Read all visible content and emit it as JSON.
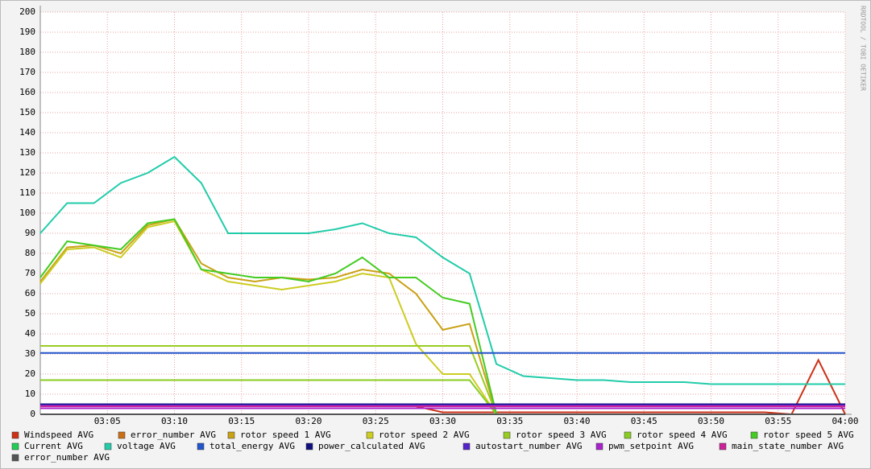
{
  "chart_data": {
    "type": "line",
    "side_text": "RRDTOOL / TOBI OETIKER",
    "x": [
      "03:00",
      "03:02",
      "03:04",
      "03:06",
      "03:08",
      "03:10",
      "03:12",
      "03:14",
      "03:16",
      "03:18",
      "03:20",
      "03:22",
      "03:24",
      "03:26",
      "03:28",
      "03:30",
      "03:32",
      "03:34",
      "03:36",
      "03:38",
      "03:40",
      "03:42",
      "03:44",
      "03:46",
      "03:48",
      "03:50",
      "03:52",
      "03:54",
      "03:56",
      "03:58",
      "04:00"
    ],
    "xlim": [
      "03:00",
      "04:00"
    ],
    "xticks": [
      "03:05",
      "03:10",
      "03:15",
      "03:20",
      "03:25",
      "03:30",
      "03:35",
      "03:40",
      "03:45",
      "03:50",
      "03:55",
      "04:00"
    ],
    "ylim": [
      0,
      200
    ],
    "yticks": [
      0,
      10,
      20,
      30,
      40,
      50,
      60,
      70,
      80,
      90,
      100,
      110,
      120,
      130,
      140,
      150,
      160,
      170,
      180,
      190,
      200
    ],
    "grid": true,
    "series": [
      {
        "name": "Windspeed AVG",
        "color": "#cc3118",
        "values": [
          4,
          4,
          4,
          4,
          4,
          4,
          4,
          4,
          4,
          4,
          4,
          4,
          4,
          4,
          4,
          1,
          1,
          1,
          1,
          1,
          1,
          1,
          1,
          1,
          1,
          1,
          1,
          1,
          0,
          27,
          0
        ]
      },
      {
        "name": "error_number AVG",
        "color": "#cc7016",
        "values": [
          0,
          0,
          0,
          0,
          0,
          0,
          0,
          0,
          0,
          0,
          0,
          0,
          0,
          0,
          0,
          0,
          0,
          0,
          0,
          0,
          0,
          0,
          0,
          0,
          0,
          0,
          0,
          0,
          0,
          0,
          0
        ]
      },
      {
        "name": "rotor speed 1 AVG",
        "color": "#c9a215",
        "values": [
          66,
          83,
          84,
          80,
          94,
          97,
          75,
          68,
          66,
          68,
          67,
          68,
          72,
          70,
          60,
          42,
          45,
          0,
          0,
          0,
          0,
          0,
          0,
          0,
          0,
          0,
          0,
          0,
          0,
          0,
          0
        ]
      },
      {
        "name": "rotor speed 2 AVG",
        "color": "#cccc22",
        "values": [
          65,
          82,
          83,
          78,
          93,
          96,
          72,
          66,
          64,
          62,
          64,
          66,
          70,
          68,
          35,
          20,
          20,
          0,
          0,
          0,
          0,
          0,
          0,
          0,
          0,
          0,
          0,
          0,
          0,
          0,
          0
        ]
      },
      {
        "name": "rotor speed 3 AVG",
        "color": "#99cc22",
        "values": [
          34,
          34,
          34,
          34,
          34,
          34,
          34,
          34,
          34,
          34,
          34,
          34,
          34,
          34,
          34,
          34,
          34,
          0,
          0,
          0,
          0,
          0,
          0,
          0,
          0,
          0,
          0,
          0,
          0,
          0,
          0
        ]
      },
      {
        "name": "rotor speed 4 AVG",
        "color": "#88cc22",
        "values": [
          17,
          17,
          17,
          17,
          17,
          17,
          17,
          17,
          17,
          17,
          17,
          17,
          17,
          17,
          17,
          17,
          17,
          0,
          0,
          0,
          0,
          0,
          0,
          0,
          0,
          0,
          0,
          0,
          0,
          0,
          0
        ]
      },
      {
        "name": "rotor speed 5 AVG",
        "color": "#44cc22",
        "values": [
          68,
          86,
          84,
          82,
          95,
          97,
          72,
          70,
          68,
          68,
          66,
          70,
          78,
          68,
          68,
          58,
          55,
          0,
          0,
          0,
          0,
          0,
          0,
          0,
          0,
          0,
          0,
          0,
          0,
          0,
          0
        ]
      },
      {
        "name": "Current AVG",
        "color": "#22cc55",
        "values": [
          0,
          0,
          0,
          0,
          0,
          0,
          0,
          0,
          0,
          0,
          0,
          0,
          0,
          0,
          0,
          0,
          0,
          0,
          0,
          0,
          0,
          0,
          0,
          0,
          0,
          0,
          0,
          0,
          0,
          0,
          0
        ]
      },
      {
        "name": "voltage AVG",
        "color": "#22ccaa",
        "values": [
          90,
          105,
          105,
          115,
          120,
          128,
          115,
          90,
          90,
          90,
          90,
          92,
          95,
          90,
          88,
          78,
          70,
          25,
          19,
          18,
          17,
          17,
          16,
          16,
          16,
          15,
          15,
          15,
          15,
          15,
          15
        ]
      },
      {
        "name": "total_energy AVG",
        "color": "#2255cc",
        "values": [
          30.5,
          30.5,
          30.5,
          30.5,
          30.5,
          30.5,
          30.5,
          30.5,
          30.5,
          30.5,
          30.5,
          30.5,
          30.5,
          30.5,
          30.5,
          30.5,
          30.5,
          30.5,
          30.5,
          30.5,
          30.5,
          30.5,
          30.5,
          30.5,
          30.5,
          30.5,
          30.5,
          30.5,
          30.5,
          30.5,
          30.5
        ]
      },
      {
        "name": "power_calculated AVG",
        "color": "#101080",
        "values": [
          5,
          5,
          5,
          5,
          5,
          5,
          5,
          5,
          5,
          5,
          5,
          5,
          5,
          5,
          5,
          5,
          5,
          5,
          5,
          5,
          5,
          5,
          5,
          5,
          5,
          5,
          5,
          5,
          5,
          5,
          5
        ]
      },
      {
        "name": "autostart_number AVG",
        "color": "#5522cc",
        "values": [
          4.5,
          4.5,
          4.5,
          4.5,
          4.5,
          4.5,
          4.5,
          4.5,
          4.5,
          4.5,
          4.5,
          4.5,
          4.5,
          4.5,
          4.5,
          4.5,
          4.5,
          4.5,
          4.5,
          4.5,
          4.5,
          4.5,
          4.5,
          4.5,
          4.5,
          4.5,
          4.5,
          4.5,
          4.5,
          4.5,
          4.5
        ]
      },
      {
        "name": "pwm_setpoint AVG",
        "color": "#aa22cc",
        "values": [
          3,
          3,
          3,
          3,
          3,
          3,
          3,
          3,
          3,
          3,
          3,
          3,
          3,
          3,
          3,
          3,
          3,
          3,
          3,
          3,
          3,
          3,
          3,
          3,
          3,
          3,
          3,
          3,
          3,
          3,
          3
        ]
      },
      {
        "name": "main_state_number AVG",
        "color": "#cc2299",
        "values": [
          4,
          4,
          4,
          4,
          4,
          4,
          4,
          4,
          4,
          4,
          4,
          4,
          4,
          4,
          4,
          4,
          4,
          4,
          4,
          4,
          4,
          4,
          4,
          4,
          4,
          4,
          4,
          4,
          4,
          4,
          4
        ]
      },
      {
        "name": "error_number AVG",
        "color": "#555555",
        "values": [
          0,
          0,
          0,
          0,
          0,
          0,
          0,
          0,
          0,
          0,
          0,
          0,
          0,
          0,
          0,
          0,
          0,
          0,
          0,
          0,
          0,
          0,
          0,
          0,
          0,
          0,
          0,
          0,
          0,
          0,
          0
        ]
      }
    ]
  }
}
